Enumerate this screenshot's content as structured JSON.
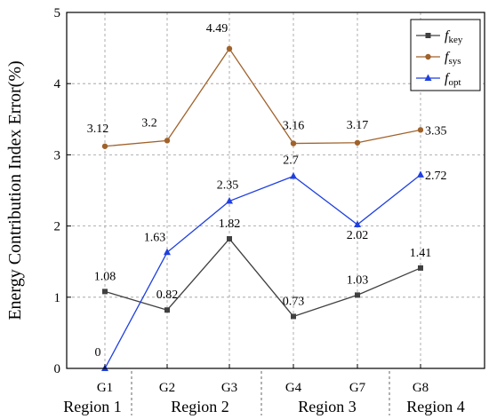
{
  "chart_data": {
    "type": "line",
    "categories": [
      "G1",
      "G2",
      "G3",
      "G4",
      "G7",
      "G8"
    ],
    "regions": [
      "Region 1",
      "Region 2",
      "Region 3",
      "Region 4"
    ],
    "ylabel": "Energy Contribution Index Error(%)",
    "xlabel": "",
    "ylim": [
      0,
      5
    ],
    "yticks": [
      "0",
      "1",
      "2",
      "3",
      "4",
      "5"
    ],
    "grid": true,
    "legend_position": "top-right",
    "series": [
      {
        "name": "f",
        "subscript": "key",
        "color": "#404040",
        "marker": "square",
        "values": [
          1.08,
          0.82,
          1.82,
          0.73,
          1.03,
          1.41
        ],
        "labels": [
          "1.08",
          "0.82",
          "1.82",
          "0.73",
          "1.03",
          "1.41"
        ]
      },
      {
        "name": "f",
        "subscript": "sys",
        "color": "#a0622b",
        "marker": "circle",
        "values": [
          3.12,
          3.2,
          4.49,
          3.16,
          3.17,
          3.35
        ],
        "labels": [
          "3.12",
          "3.2",
          "4.49",
          "3.16",
          "3.17",
          "3.35"
        ]
      },
      {
        "name": "f",
        "subscript": "opt",
        "color": "#1f3fe0",
        "marker": "triangle",
        "values": [
          0,
          1.63,
          2.35,
          2.7,
          2.02,
          2.72
        ],
        "labels": [
          "0",
          "1.63",
          "2.35",
          "2.7",
          "2.02",
          "2.72"
        ]
      }
    ]
  }
}
